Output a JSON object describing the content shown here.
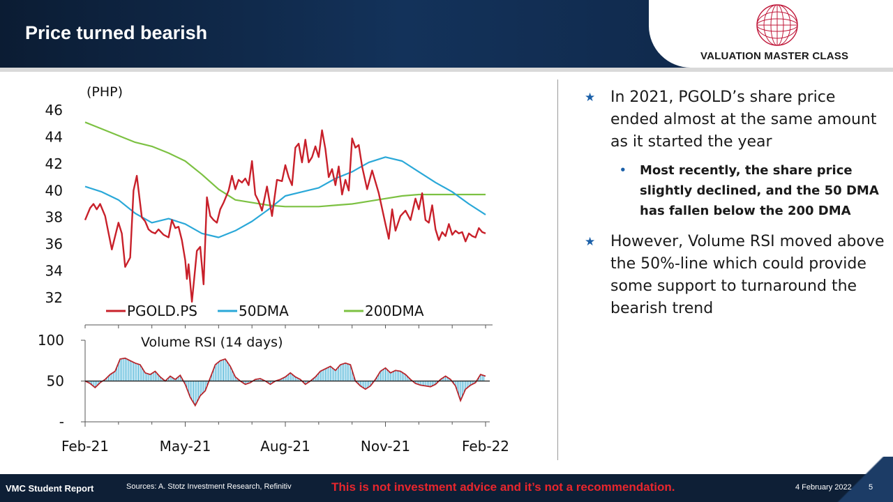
{
  "header": {
    "title": "Price turned bearish",
    "logo_text": "VALUATION MASTER CLASS",
    "logo_icon": "globe-icon"
  },
  "bullets": [
    {
      "text": "In 2021, PGOLD’s share price ended almost at the same amount as it started the year",
      "level": 1
    },
    {
      "text": "Most recently, the share price slightly declined, and the 50 DMA has fallen below the 200 DMA",
      "level": 2
    },
    {
      "text": "However, Volume RSI moved above the 50%-line which could provide some support to turnaround the bearish trend",
      "level": 1
    }
  ],
  "footer": {
    "report": "VMC Student Report",
    "sources": "Sources: A. Stotz Investment Research, Refinitiv",
    "disclaimer": "This is not investment advice and it’s not a recommendation.",
    "date": "4 February 2022",
    "page": "5"
  },
  "colors": {
    "price": "#c8202a",
    "dma50": "#2aa8d8",
    "dma200": "#7cc142",
    "rsi_fill": "#27a4cf",
    "rsi_line": "#b8272d",
    "bullet": "#1a5fa8",
    "header": "#0e2443",
    "disclaimer": "#e8262d"
  },
  "chart_data": [
    {
      "type": "line",
      "title": "",
      "ylabel": "(PHP)",
      "ylim": [
        31,
        46
      ],
      "yticks": [
        "46",
        "44",
        "42",
        "40",
        "38",
        "36",
        "34",
        "32"
      ],
      "x_months": [
        0,
        12
      ],
      "grid": false,
      "legend_position": "bottom",
      "series": [
        {
          "name": "PGOLD.PS",
          "x": [
            0,
            0.15,
            0.25,
            0.35,
            0.45,
            0.6,
            0.8,
            1.0,
            1.1,
            1.2,
            1.35,
            1.45,
            1.55,
            1.7,
            1.8,
            1.9,
            2.0,
            2.1,
            2.2,
            2.35,
            2.5,
            2.6,
            2.7,
            2.8,
            2.9,
            3.0,
            3.05,
            3.1,
            3.2,
            3.3,
            3.35,
            3.45,
            3.55,
            3.65,
            3.75,
            3.85,
            3.95,
            4.05,
            4.15,
            4.3,
            4.4,
            4.5,
            4.6,
            4.7,
            4.8,
            4.9,
            5.0,
            5.1,
            5.2,
            5.3,
            5.45,
            5.6,
            5.75,
            5.9,
            6.0,
            6.1,
            6.2,
            6.3,
            6.4,
            6.5,
            6.6,
            6.7,
            6.8,
            6.9,
            7.0,
            7.1,
            7.2,
            7.3,
            7.4,
            7.5,
            7.6,
            7.7,
            7.8,
            7.9,
            8.0,
            8.1,
            8.2,
            8.3,
            8.45,
            8.6,
            8.8,
            9.0,
            9.1,
            9.2,
            9.3,
            9.45,
            9.6,
            9.75,
            9.9,
            10.0,
            10.1,
            10.2,
            10.3,
            10.4,
            10.5,
            10.6,
            10.7,
            10.8,
            10.9,
            11.0,
            11.1,
            11.2,
            11.3,
            11.4,
            11.5,
            11.6,
            11.7,
            11.8,
            11.9,
            12.0
          ],
          "values": [
            37.8,
            38.7,
            39.0,
            38.6,
            39.0,
            38.1,
            35.6,
            37.6,
            36.8,
            34.3,
            35.0,
            40.0,
            41.1,
            38.0,
            37.7,
            37.1,
            36.9,
            36.8,
            37.1,
            36.7,
            36.5,
            37.8,
            37.2,
            37.3,
            36.3,
            34.8,
            33.4,
            34.5,
            31.7,
            34.2,
            35.5,
            35.8,
            33.0,
            39.5,
            38.1,
            37.8,
            37.6,
            38.6,
            39.1,
            40.0,
            41.1,
            40.1,
            40.8,
            40.6,
            40.9,
            40.4,
            42.2,
            39.7,
            39.2,
            38.5,
            40.3,
            38.1,
            40.8,
            40.7,
            41.9,
            41.0,
            40.4,
            43.2,
            43.5,
            42.1,
            43.8,
            42.1,
            42.5,
            43.3,
            42.5,
            44.5,
            43.1,
            41.0,
            41.6,
            40.4,
            41.8,
            39.7,
            40.8,
            40.0,
            43.9,
            43.2,
            43.4,
            41.8,
            40.1,
            41.5,
            39.8,
            37.5,
            36.4,
            38.6,
            37.0,
            38.1,
            38.5,
            37.8,
            39.4,
            38.6,
            39.8,
            37.8,
            37.6,
            38.9,
            37.1,
            36.3,
            36.9,
            36.6,
            37.5,
            36.7,
            37.0,
            36.8,
            36.9,
            36.2,
            36.8,
            36.6,
            36.5,
            37.2,
            36.9,
            36.8
          ]
        },
        {
          "name": "50DMA",
          "x": [
            0,
            0.5,
            1.0,
            1.5,
            2.0,
            2.5,
            3.0,
            3.5,
            4.0,
            4.5,
            5.0,
            5.5,
            6.0,
            6.5,
            7.0,
            7.5,
            8.0,
            8.5,
            9.0,
            9.5,
            10.0,
            10.5,
            11.0,
            11.5,
            12.0
          ],
          "values": [
            40.3,
            39.9,
            39.3,
            38.3,
            37.6,
            37.9,
            37.5,
            36.8,
            36.5,
            37.0,
            37.7,
            38.6,
            39.6,
            39.9,
            40.2,
            40.9,
            41.4,
            42.1,
            42.5,
            42.2,
            41.4,
            40.6,
            39.9,
            39.0,
            38.2
          ]
        },
        {
          "name": "200DMA",
          "x": [
            0,
            0.5,
            1.0,
            1.5,
            2.0,
            2.5,
            3.0,
            3.5,
            4.0,
            4.5,
            5.0,
            5.5,
            6.0,
            6.5,
            7.0,
            7.5,
            8.0,
            8.5,
            9.0,
            9.5,
            10.0,
            10.5,
            11.0,
            11.5,
            12.0
          ],
          "values": [
            45.1,
            44.6,
            44.1,
            43.6,
            43.3,
            42.8,
            42.2,
            41.2,
            40.1,
            39.3,
            39.1,
            38.9,
            38.8,
            38.8,
            38.8,
            38.9,
            39.0,
            39.2,
            39.4,
            39.6,
            39.7,
            39.7,
            39.7,
            39.7,
            39.7
          ]
        }
      ]
    },
    {
      "type": "area",
      "title": "Volume RSI (14 days)",
      "ylim": [
        0,
        100
      ],
      "yticks": [
        "100",
        "50",
        "-"
      ],
      "reference_line": 50,
      "xticks": [
        "Feb-21",
        "May-21",
        "Aug-21",
        "Nov-21",
        "Feb-22"
      ],
      "series": [
        {
          "name": "Volume RSI (14 days)",
          "x": [
            0,
            0.15,
            0.3,
            0.45,
            0.6,
            0.75,
            0.9,
            1.05,
            1.2,
            1.35,
            1.5,
            1.65,
            1.8,
            1.95,
            2.1,
            2.25,
            2.4,
            2.55,
            2.7,
            2.85,
            3.0,
            3.15,
            3.3,
            3.45,
            3.6,
            3.75,
            3.9,
            4.05,
            4.2,
            4.35,
            4.5,
            4.65,
            4.8,
            4.95,
            5.1,
            5.25,
            5.4,
            5.55,
            5.7,
            5.85,
            6.0,
            6.15,
            6.3,
            6.45,
            6.6,
            6.75,
            6.9,
            7.05,
            7.2,
            7.35,
            7.5,
            7.65,
            7.8,
            7.95,
            8.1,
            8.25,
            8.4,
            8.55,
            8.7,
            8.85,
            9.0,
            9.15,
            9.3,
            9.45,
            9.6,
            9.75,
            9.9,
            10.05,
            10.2,
            10.35,
            10.5,
            10.65,
            10.8,
            10.95,
            11.1,
            11.25,
            11.4,
            11.55,
            11.7,
            11.85,
            12.0
          ],
          "values": [
            50,
            47,
            42,
            48,
            52,
            58,
            62,
            77,
            78,
            75,
            72,
            70,
            60,
            58,
            62,
            55,
            50,
            56,
            52,
            57,
            46,
            30,
            20,
            32,
            38,
            54,
            70,
            75,
            77,
            68,
            55,
            50,
            46,
            48,
            52,
            53,
            50,
            46,
            50,
            52,
            55,
            60,
            55,
            52,
            46,
            50,
            55,
            62,
            65,
            68,
            63,
            70,
            72,
            70,
            50,
            44,
            40,
            44,
            52,
            62,
            66,
            60,
            63,
            62,
            58,
            52,
            47,
            45,
            44,
            43,
            46,
            52,
            56,
            52,
            44,
            26,
            40,
            45,
            48,
            58,
            56
          ]
        }
      ]
    }
  ]
}
